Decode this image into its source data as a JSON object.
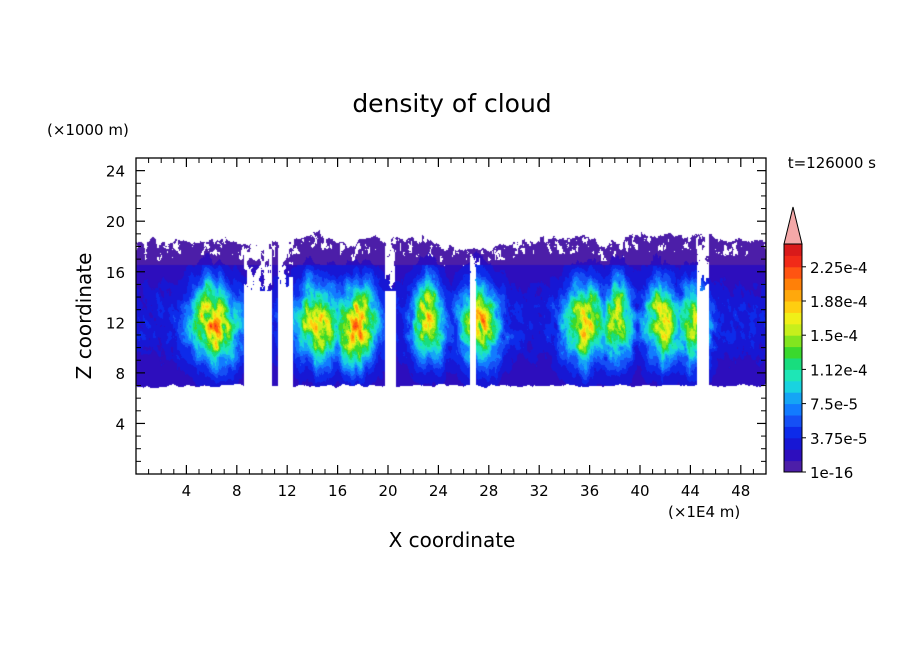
{
  "chart_data": {
    "type": "heatmap",
    "title": "density of cloud",
    "time_label": "t=126000 s",
    "xlabel": "X coordinate",
    "ylabel": "Z coordinate",
    "x_unit": "(×1E4 m)",
    "y_unit": "(×1000 m)",
    "xlim": [
      0,
      50
    ],
    "ylim": [
      0,
      25
    ],
    "x_ticks": [
      4,
      8,
      12,
      16,
      20,
      24,
      28,
      32,
      36,
      40,
      44,
      48
    ],
    "y_ticks": [
      4,
      8,
      12,
      16,
      20,
      24
    ],
    "x_ticks_text": [
      "4",
      "8",
      "12",
      "16",
      "20",
      "24",
      "28",
      "32",
      "36",
      "40",
      "44",
      "48"
    ],
    "y_ticks_text": [
      "4",
      "8",
      "12",
      "16",
      "20",
      "24"
    ],
    "cloud_base_z": 7,
    "cloud_top_z_range": [
      17.5,
      19.5
    ],
    "core_max_z": 16.5,
    "gaps_x": [
      [
        8.6,
        10.8
      ],
      [
        11.3,
        12.5
      ],
      [
        19.8,
        20.6
      ],
      [
        26.5,
        27
      ],
      [
        44.5,
        45.5
      ]
    ],
    "cores": [
      {
        "x": 6.2,
        "half_width": 1.8,
        "intensity": 0.66
      },
      {
        "x": 14.5,
        "half_width": 1.8,
        "intensity": 0.6
      },
      {
        "x": 17.5,
        "half_width": 1.6,
        "intensity": 0.7
      },
      {
        "x": 23.2,
        "half_width": 1.2,
        "intensity": 0.62
      },
      {
        "x": 27.3,
        "half_width": 1.5,
        "intensity": 0.64
      },
      {
        "x": 35.6,
        "half_width": 1.6,
        "intensity": 0.62
      },
      {
        "x": 38.2,
        "half_width": 1.1,
        "intensity": 0.6
      },
      {
        "x": 41.8,
        "half_width": 1.4,
        "intensity": 0.58
      },
      {
        "x": 44.2,
        "half_width": 1.2,
        "intensity": 0.56
      }
    ],
    "colorbar": {
      "min_label": "1e-16",
      "max_value": 0.00025,
      "extend": "max",
      "labels": [
        "1e-16",
        "3.75e-5",
        "7.5e-5",
        "1.12e-4",
        "1.5e-4",
        "1.88e-4",
        "2.25e-4"
      ],
      "colors": [
        "#4c1ea8",
        "#2d0ebd",
        "#1717d4",
        "#0d2bea",
        "#1550f5",
        "#127bff",
        "#15a5f5",
        "#19d3e0",
        "#1ee6b6",
        "#18dd7e",
        "#3ad92d",
        "#82e51f",
        "#c7ef1c",
        "#f0ef18",
        "#ffce10",
        "#ffa80c",
        "#ff8008",
        "#ff5412",
        "#f12a18",
        "#d91a1a"
      ],
      "extend_color": "#f4a8a8"
    }
  }
}
